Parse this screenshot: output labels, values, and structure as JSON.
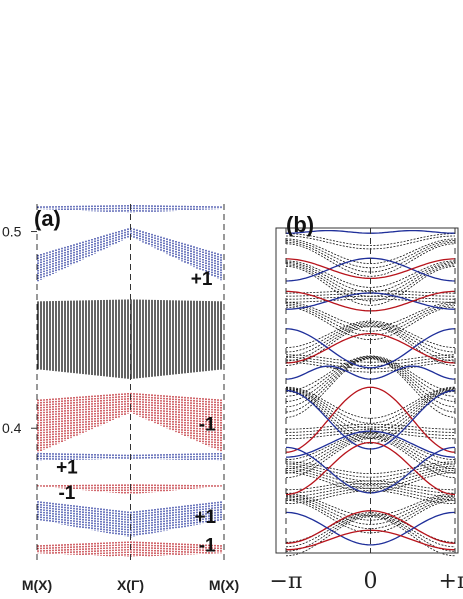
{
  "colors": {
    "blue": "#1f2f9a",
    "red": "#b8141c",
    "black": "#111111",
    "axis": "#333333"
  },
  "chart_data": [
    {
      "type": "scatter",
      "panel_label": "(a)",
      "x_ticks": [
        "M(X)",
        "X(Γ)",
        "M(X)"
      ],
      "y_ticks": [
        {
          "value": 0.5,
          "label": "0.5"
        },
        {
          "value": 0.4,
          "label": "0.4"
        }
      ],
      "ylim": [
        0.332,
        0.514
      ],
      "annotations": [
        {
          "text": "+1",
          "x": 0.88,
          "y": 0.4765
        },
        {
          "text": "-1",
          "x": 0.91,
          "y": 0.4025
        },
        {
          "text": "+1",
          "x": 0.16,
          "y": 0.3805
        },
        {
          "text": "-1",
          "x": 0.16,
          "y": 0.3675
        },
        {
          "text": "+1",
          "x": 0.9,
          "y": 0.3555
        },
        {
          "text": "-1",
          "x": 0.91,
          "y": 0.341
        }
      ],
      "series": [
        {
          "color": "blue",
          "edge_lo": 0.5115,
          "edge_hi": 0.5128,
          "center_lo": 0.5095,
          "center_hi": 0.5135
        },
        {
          "color": "blue",
          "edge_lo": 0.4745,
          "edge_hi": 0.488,
          "center_lo": 0.4975,
          "center_hi": 0.502
        },
        {
          "color": "black",
          "edge_lo": 0.43,
          "edge_hi": 0.4645,
          "center_lo": 0.425,
          "center_hi": 0.4655
        },
        {
          "color": "red",
          "edge_lo": 0.3875,
          "edge_hi": 0.4145,
          "center_lo": 0.408,
          "center_hi": 0.418
        },
        {
          "color": "blue",
          "edge_lo": 0.3835,
          "edge_hi": 0.3875,
          "center_lo": 0.3845,
          "center_hi": 0.3865
        },
        {
          "color": "red",
          "edge_lo": 0.3705,
          "edge_hi": 0.371,
          "center_lo": 0.3665,
          "center_hi": 0.3715
        },
        {
          "color": "blue",
          "edge_lo": 0.3535,
          "edge_hi": 0.363,
          "center_lo": 0.3445,
          "center_hi": 0.3575
        },
        {
          "color": "red",
          "edge_lo": 0.3365,
          "edge_hi": 0.3405,
          "center_lo": 0.3345,
          "center_hi": 0.3425
        }
      ]
    },
    {
      "type": "line",
      "panel_label": "(b)",
      "x_ticks": [
        "−π",
        "0",
        "+π"
      ],
      "xlim": [
        -3.1416,
        3.1416
      ],
      "ylim": [
        0,
        1
      ],
      "series": [
        {
          "color": "blue",
          "y0": 0.988,
          "amp": 0.004,
          "k": 2
        },
        {
          "color": "blue",
          "y0": 0.872,
          "amp": 0.035,
          "k": 1
        },
        {
          "color": "red",
          "y0": 0.875,
          "amp": -0.03,
          "k": 1
        },
        {
          "color": "blue",
          "y0": 0.775,
          "amp": 0.025,
          "k": 1
        },
        {
          "color": "red",
          "y0": 0.775,
          "amp": -0.03,
          "k": 1
        },
        {
          "color": "blue",
          "y0": 0.63,
          "amp": -0.06,
          "k": 1
        },
        {
          "color": "red",
          "y0": 0.63,
          "amp": 0.045,
          "k": 1
        },
        {
          "color": "blue",
          "y0": 0.555,
          "amp": 0.02,
          "k": 2
        },
        {
          "color": "red",
          "y0": 0.41,
          "amp": 0.1,
          "k": 1
        },
        {
          "color": "blue",
          "y0": 0.41,
          "amp": -0.09,
          "k": 1
        },
        {
          "color": "blue",
          "y0": 0.335,
          "amp": 0.04,
          "k": 1
        },
        {
          "color": "red",
          "y0": 0.26,
          "amp": 0.08,
          "k": 1
        },
        {
          "color": "blue",
          "y0": 0.255,
          "amp": -0.07,
          "k": 1
        },
        {
          "color": "red",
          "y0": 0.08,
          "amp": 0.05,
          "k": 1
        },
        {
          "color": "blue",
          "y0": 0.075,
          "amp": -0.05,
          "k": 1
        },
        {
          "color": "red",
          "y0": 0.04,
          "amp": 0.03,
          "k": 1
        }
      ],
      "black_bands": [
        {
          "y0": 0.96,
          "amp": -0.02,
          "n": 2
        },
        {
          "y0": 0.915,
          "amp": -0.05,
          "n": 4
        },
        {
          "y0": 0.84,
          "amp": -0.06,
          "n": 5
        },
        {
          "y0": 0.79,
          "amp": 0.005,
          "n": 4
        },
        {
          "y0": 0.72,
          "amp": -0.05,
          "n": 4
        },
        {
          "y0": 0.655,
          "amp": 0.06,
          "n": 5
        },
        {
          "y0": 0.585,
          "amp": -0.015,
          "n": 4
        },
        {
          "y0": 0.53,
          "amp": 0.09,
          "n": 6
        },
        {
          "y0": 0.44,
          "amp": -0.08,
          "n": 6
        },
        {
          "y0": 0.375,
          "amp": 0.01,
          "n": 4
        },
        {
          "y0": 0.31,
          "amp": 0.06,
          "n": 5
        },
        {
          "y0": 0.24,
          "amp": -0.03,
          "n": 6
        },
        {
          "y0": 0.19,
          "amp": 0.02,
          "n": 5
        },
        {
          "y0": 0.13,
          "amp": -0.05,
          "n": 5
        },
        {
          "y0": 0.065,
          "amp": 0.06,
          "n": 4
        }
      ]
    }
  ]
}
